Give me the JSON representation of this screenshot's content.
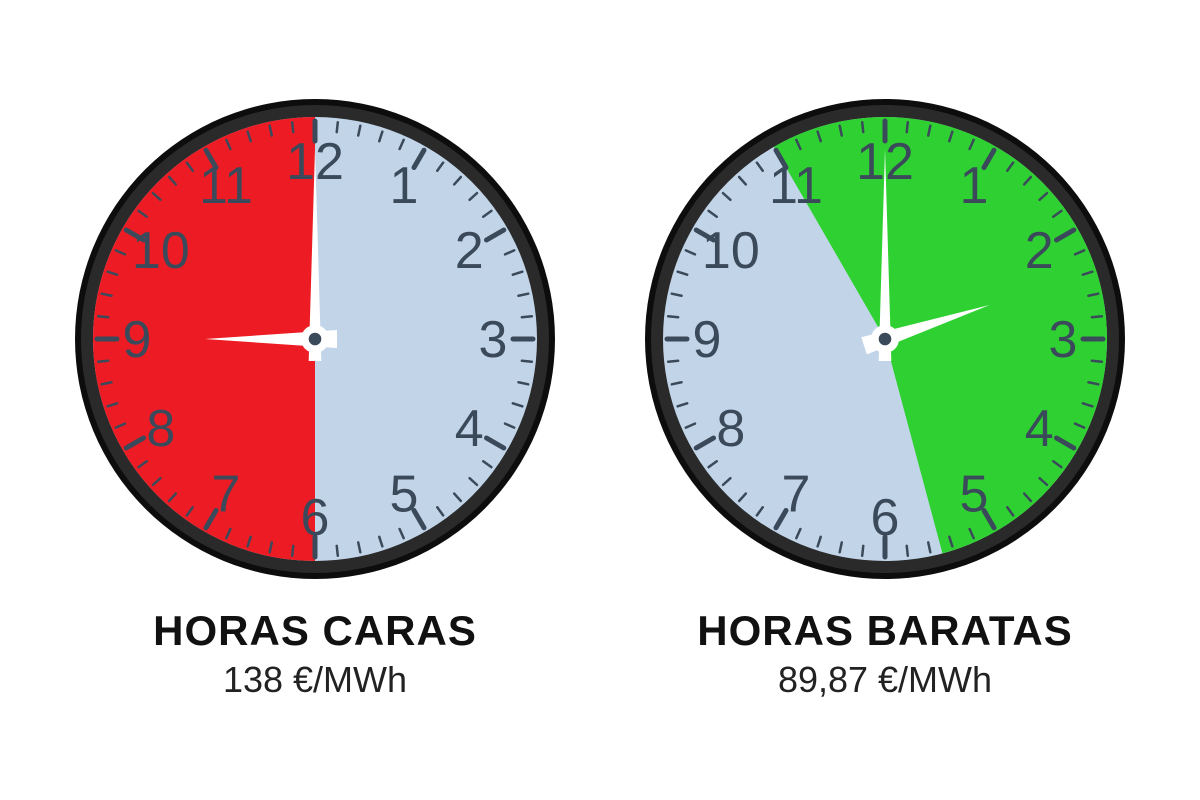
{
  "clocks": [
    {
      "id": "expensive",
      "title": "HORAS CARAS",
      "price_text": "138 €/MWh",
      "face_color": "#c2d4e8",
      "highlight_color": "#ed1c24",
      "rim_outer": "#0d0d0d",
      "rim_inner": "#2a2a2a",
      "numeral_color": "#3b4a5a",
      "tick_color": "#3b4a5a",
      "hand_color": "#ffffff",
      "highlight_start_hour": 6,
      "highlight_end_hour": 12,
      "hour_hand_at": 9,
      "minute_hand_at": 0
    },
    {
      "id": "cheap",
      "title": "HORAS BARATAS",
      "price_text": "89,87 €/MWh",
      "face_color": "#c2d4e8",
      "highlight_color": "#2fd132",
      "rim_outer": "#0d0d0d",
      "rim_inner": "#2a2a2a",
      "numeral_color": "#3b4a5a",
      "tick_color": "#3b4a5a",
      "hand_color": "#ffffff",
      "highlight_start_hour": 11,
      "highlight_end_hour": 17.5,
      "hour_hand_at": 2.4,
      "minute_hand_at": 0
    }
  ],
  "clock_geometry": {
    "outer_radius": 240,
    "rim_width": 18,
    "face_radius": 222,
    "numeral_radius": 178,
    "numeral_fontsize": 52,
    "major_tick_outer": 218,
    "major_tick_inner": 198,
    "minor_tick_outer": 218,
    "minor_tick_inner": 208,
    "tick_stroke_major": 5,
    "tick_stroke_minor": 2.5,
    "hour_hand_len": 110,
    "minute_hand_len": 190,
    "hand_width": 18,
    "hub_radius": 14
  },
  "label_style": {
    "title_fontsize": 42,
    "title_weight": 800,
    "price_fontsize": 36,
    "text_color": "#111111"
  }
}
